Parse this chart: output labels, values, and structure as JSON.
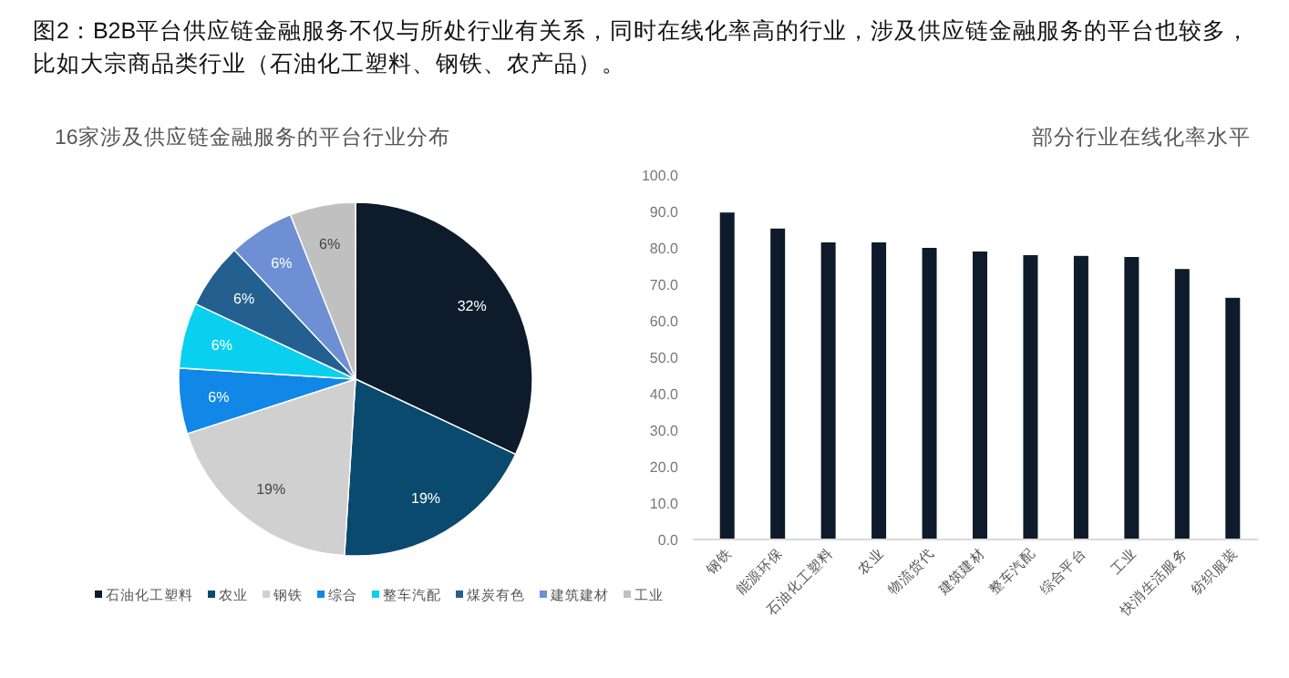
{
  "chart_data": [
    {
      "type": "pie",
      "title": "图2：B2B平台供应链金融服务不仅与所处行业有关系，同时在线化率高的行业，涉及供应链金融服务的平台也较多，比如大宗商品类行业（石油化工塑料、钢铁、农产品）。",
      "subtitle": "16家涉及供应链金融服务的平台行业分布",
      "categories": [
        "石油化工塑料",
        "农业",
        "钢铁",
        "综合",
        "整车汽配",
        "煤炭有色",
        "建筑建材",
        "工业"
      ],
      "values": [
        32,
        19,
        19,
        6,
        6,
        6,
        6,
        6
      ],
      "colors": [
        "#0d1b2a",
        "#0a4a6e",
        "#d0d0d0",
        "#1187e8",
        "#0ad0ef",
        "#235f8f",
        "#6e8fd4",
        "#c0c0c0"
      ],
      "value_labels": [
        "32%",
        "19%",
        "19%",
        "6%",
        "6%",
        "6%",
        "6%",
        "6%"
      ],
      "legend": "bottom"
    },
    {
      "type": "bar",
      "title": "部分行业在线化率水平",
      "categories": [
        "钢铁",
        "能源环保",
        "石油化工塑料",
        "农业",
        "物流货代",
        "建筑建材",
        "整车汽配",
        "综合平台",
        "工业",
        "快消生活服务",
        "纺织服装"
      ],
      "values": [
        89.7,
        85.3,
        81.5,
        81.5,
        80.0,
        79.0,
        78.0,
        77.8,
        77.5,
        74.2,
        66.3
      ],
      "color": "#0d1b2a",
      "ylim": [
        0,
        100
      ],
      "yticks": [
        {
          "value": 0,
          "label": "0.0"
        },
        {
          "value": 10,
          "label": "10.0"
        },
        {
          "value": 20,
          "label": "20.0"
        },
        {
          "value": 30,
          "label": "30.0"
        },
        {
          "value": 40,
          "label": "40.0"
        },
        {
          "value": 50,
          "label": "50.0"
        },
        {
          "value": 60,
          "label": "60.0"
        },
        {
          "value": 70,
          "label": "70.0"
        },
        {
          "value": 80,
          "label": "80.0"
        },
        {
          "value": 90,
          "label": "90.0"
        },
        {
          "value": 100,
          "label": "100.0"
        }
      ]
    }
  ]
}
